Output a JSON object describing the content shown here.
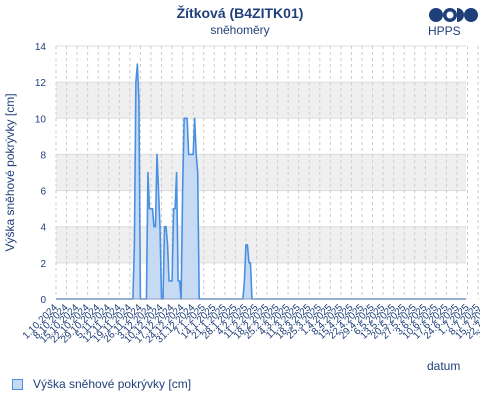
{
  "chart_data": {
    "type": "area",
    "title": "Žítková (B4ZITK01)",
    "subtitle": "sněhoměry",
    "xlabel": "datum",
    "ylabel": "Výška sněhové pokrývky [cm]",
    "ylim": [
      0,
      14
    ],
    "yticks": [
      0,
      2,
      4,
      6,
      8,
      10,
      12,
      14
    ],
    "xlim": [
      "2024-10-01",
      "2025-06-30"
    ],
    "xtick_labels": [
      "1.10.2024",
      "8.10.2024",
      "15.10.2024",
      "22.10.2024",
      "29.10.2024",
      "5.11.2024",
      "12.11.2024",
      "19.11.2024",
      "26.11.2024",
      "3.12.2024",
      "10.12.2024",
      "17.12.2024",
      "24.12.2024",
      "31.12.2024",
      "7.1.2025",
      "14.1.2025",
      "21.1.2025",
      "28.1.2025",
      "4.2.2025",
      "11.2.2025",
      "18.2.2025",
      "25.2.2025",
      "4.3.2025",
      "11.3.2025",
      "18.3.2025",
      "25.3.2025",
      "1.4.2025",
      "8.4.2025",
      "15.4.2025",
      "22.4.2025",
      "29.4.2025",
      "6.5.2025",
      "13.5.2025",
      "20.5.2025",
      "27.5.2025",
      "3.6.2025",
      "10.6.2025",
      "17.6.2025",
      "24.6.2025",
      "1.7.2025",
      "8.7.2025",
      "15.7.2025",
      "22.7.2025",
      "29.7.2025",
      "5.8.2025",
      "12.8.2025",
      "19.8.2025",
      "26.8.2025"
    ],
    "grid": true,
    "legend_position": "bottom-left",
    "series": [
      {
        "name": "Výška sněhové pokrývky [cm]",
        "color": "#4a90e2",
        "fill": "#c7daf4",
        "x": [
          "2024-10-01",
          "2024-11-21",
          "2024-11-22",
          "2024-11-23",
          "2024-11-24",
          "2024-11-25",
          "2024-11-26",
          "2024-11-28",
          "2024-11-29",
          "2024-11-30",
          "2024-12-01",
          "2024-12-02",
          "2024-12-03",
          "2024-12-04",
          "2024-12-05",
          "2024-12-06",
          "2024-12-07",
          "2024-12-09",
          "2024-12-10",
          "2024-12-11",
          "2024-12-12",
          "2024-12-13",
          "2024-12-14",
          "2024-12-15",
          "2024-12-17",
          "2024-12-18",
          "2024-12-19",
          "2024-12-20",
          "2024-12-21",
          "2024-12-22",
          "2024-12-23",
          "2024-12-24",
          "2024-12-25",
          "2024-12-26",
          "2024-12-27",
          "2024-12-28",
          "2024-12-29",
          "2024-12-30",
          "2024-12-31",
          "2025-01-01",
          "2025-01-02",
          "2025-01-03",
          "2025-01-04",
          "2025-01-05",
          "2025-01-06",
          "2025-01-07",
          "2025-01-08",
          "2025-01-09",
          "2025-01-10",
          "2025-01-11",
          "2025-01-12",
          "2025-01-13",
          "2025-01-14",
          "2025-01-15",
          "2025-01-16",
          "2025-01-17",
          "2025-01-18",
          "2025-01-19",
          "2025-01-20",
          "2025-01-21",
          "2025-02-02",
          "2025-02-03",
          "2025-02-04",
          "2025-02-05",
          "2025-02-06",
          "2025-02-07",
          "2025-02-08",
          "2025-06-30"
        ],
        "y": [
          0,
          0,
          3,
          12,
          13,
          11,
          0,
          0,
          0,
          0,
          7,
          5,
          5,
          5,
          4,
          4,
          8,
          4,
          0,
          0,
          4,
          4,
          3,
          1,
          1,
          5,
          5,
          7,
          1,
          1,
          0,
          6,
          10,
          10,
          10,
          8,
          8,
          8,
          8,
          10,
          8,
          7,
          0,
          0,
          0,
          0,
          0,
          0,
          0,
          0,
          0,
          0,
          0,
          0,
          0,
          0,
          0,
          0,
          0,
          0,
          0,
          1,
          3,
          3,
          2,
          2,
          0,
          0
        ]
      }
    ]
  },
  "header": {
    "logo_text": "HPPS"
  },
  "legend": {
    "label": "Výška sněhové pokrývky [cm]"
  }
}
